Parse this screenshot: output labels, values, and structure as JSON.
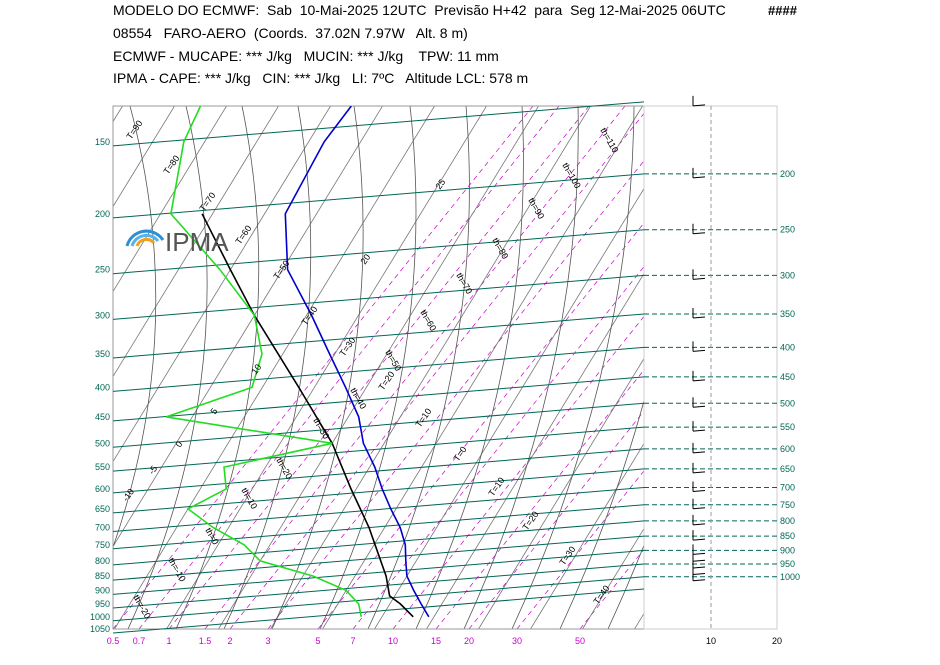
{
  "header": {
    "line1": "MODELO DO ECMWF:  Sab  10-Mai-2025 12UTC  Previsão H+42  para  Seg 12-Mai-2025 06UTC",
    "flag": "####",
    "line2": "08554   FARO-AERO  (Coords.  37.02N 7.97W   Alt. 8 m)",
    "line3": "ECMWF - MUCAPE: *** J/kg   MUCIN: *** J/kg    TPW: 11 mm",
    "line4": "IPMA - CAPE: *** J/kg   CIN: *** J/kg   LI: 7ºC   Altitude LCL: 578 m"
  },
  "logo": {
    "text": "IPMA"
  },
  "colors": {
    "isobar": "#006655",
    "isotherm": "#444444",
    "mixing_ratio": "#cc00cc",
    "temperature": "#0000cc",
    "dewpoint": "#22dd22",
    "parcel": "#000000",
    "frame": "#999999"
  },
  "chart_data": {
    "type": "skew-t",
    "pressure_ticks_left": [
      150,
      200,
      250,
      300,
      350,
      400,
      450,
      500,
      550,
      600,
      650,
      700,
      750,
      800,
      850,
      900,
      950,
      1000,
      1050
    ],
    "pressure_ticks_right": [
      200,
      250,
      300,
      350,
      400,
      450,
      500,
      550,
      600,
      650,
      700,
      750,
      800,
      850,
      900,
      950,
      1000
    ],
    "mixing_ratio_ticks": [
      "0.5",
      "0.7",
      "1",
      "1.5",
      "2",
      "3",
      "5",
      "7",
      "10",
      "15",
      "20",
      "30",
      "50"
    ],
    "isotherm_labels": [
      "T=90",
      "T=80",
      "T=70",
      "T=60",
      "T=50",
      "T=40",
      "T=30",
      "T=20",
      "T=10",
      "T=0",
      "T=10",
      "T=20",
      "T=30",
      "T=40"
    ],
    "isotherm_labels_mid": [
      "25",
      "20",
      "10",
      "5",
      "0",
      "-5",
      "-10"
    ],
    "theta_labels": [
      "th=110",
      "th=100",
      "th=90",
      "th=80",
      "th=70",
      "th=60",
      "th=50",
      "th=40",
      "th=30",
      "th=20",
      "th=10",
      "th=0",
      "th=-10",
      "th=-20"
    ],
    "temperature_profile": [
      {
        "p": 1000,
        "t": 19
      },
      {
        "p": 950,
        "t": 16
      },
      {
        "p": 900,
        "t": 13
      },
      {
        "p": 850,
        "t": 10
      },
      {
        "p": 800,
        "t": 8
      },
      {
        "p": 750,
        "t": 6
      },
      {
        "p": 700,
        "t": 3
      },
      {
        "p": 650,
        "t": -1
      },
      {
        "p": 600,
        "t": -5
      },
      {
        "p": 550,
        "t": -9
      },
      {
        "p": 500,
        "t": -14
      },
      {
        "p": 450,
        "t": -18
      },
      {
        "p": 400,
        "t": -24
      },
      {
        "p": 350,
        "t": -31
      },
      {
        "p": 300,
        "t": -39
      },
      {
        "p": 250,
        "t": -49
      },
      {
        "p": 200,
        "t": -56
      },
      {
        "p": 150,
        "t": -57
      },
      {
        "p": 130,
        "t": -56
      }
    ],
    "dewpoint_profile": [
      {
        "p": 1000,
        "t": 6
      },
      {
        "p": 950,
        "t": 4
      },
      {
        "p": 900,
        "t": 0
      },
      {
        "p": 850,
        "t": -8
      },
      {
        "p": 800,
        "t": -20
      },
      {
        "p": 750,
        "t": -25
      },
      {
        "p": 700,
        "t": -33
      },
      {
        "p": 650,
        "t": -40
      },
      {
        "p": 600,
        "t": -35
      },
      {
        "p": 550,
        "t": -38
      },
      {
        "p": 500,
        "t": -20
      },
      {
        "p": 450,
        "t": -55
      },
      {
        "p": 400,
        "t": -42
      },
      {
        "p": 350,
        "t": -44
      },
      {
        "p": 300,
        "t": -50
      },
      {
        "p": 250,
        "t": -62
      },
      {
        "p": 200,
        "t": -78
      },
      {
        "p": 150,
        "t": -84
      },
      {
        "p": 130,
        "t": -85
      }
    ],
    "parcel_profile": [
      {
        "p": 1000,
        "t": 16
      },
      {
        "p": 950,
        "t": 12
      },
      {
        "p": 920,
        "t": 9
      },
      {
        "p": 850,
        "t": 6
      },
      {
        "p": 700,
        "t": -3
      },
      {
        "p": 600,
        "t": -11
      },
      {
        "p": 500,
        "t": -20
      },
      {
        "p": 400,
        "t": -33
      },
      {
        "p": 300,
        "t": -50
      },
      {
        "p": 250,
        "t": -60
      },
      {
        "p": 200,
        "t": -72
      }
    ],
    "wind_levels": [
      150,
      200,
      250,
      300,
      350,
      400,
      450,
      500,
      550,
      600,
      650,
      700,
      750,
      800,
      850,
      900,
      925,
      950,
      975,
      1000
    ],
    "wind_scale_ticks": [
      "10",
      "20"
    ],
    "grid": true
  }
}
